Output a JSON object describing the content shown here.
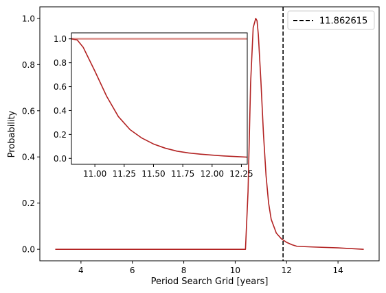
{
  "chart_data": [
    {
      "type": "line",
      "title": "",
      "xlabel": "Period Search Grid [years]",
      "ylabel": "Probability",
      "xlim": [
        2.4,
        15.6
      ],
      "ylim": [
        -0.05,
        1.05
      ],
      "xticks": [
        4,
        6,
        8,
        10,
        12,
        14
      ],
      "yticks": [
        0.0,
        0.2,
        0.4,
        0.6,
        0.8,
        1.0
      ],
      "xtick_labels": [
        "4",
        "6",
        "8",
        "10",
        "12",
        "14"
      ],
      "ytick_labels": [
        "0.0",
        "0.2",
        "0.4",
        "0.6",
        "0.8",
        "1.0"
      ],
      "grid": false,
      "legend_position": "top-right",
      "series": [
        {
          "color": "#b22222",
          "x": [
            3.0,
            10.4,
            10.5,
            10.6,
            10.7,
            10.8,
            10.85,
            10.9,
            11.0,
            11.1,
            11.2,
            11.3,
            11.4,
            11.6,
            11.8,
            12.0,
            12.2,
            12.4,
            13.0,
            14.0,
            15.0
          ],
          "y": [
            0.0,
            0.0,
            0.25,
            0.72,
            0.96,
            1.0,
            0.99,
            0.93,
            0.73,
            0.5,
            0.32,
            0.2,
            0.13,
            0.07,
            0.045,
            0.03,
            0.02,
            0.013,
            0.01,
            0.006,
            0.0
          ]
        }
      ],
      "reference_lines": [
        {
          "orientation": "vertical",
          "x": 11.862615,
          "label": "11.862615",
          "color": "#000000",
          "style": "dashed"
        }
      ]
    },
    {
      "type": "line",
      "title": "",
      "xlabel": "",
      "ylabel": "",
      "xlim": [
        10.8,
        12.3
      ],
      "ylim": [
        -0.05,
        1.05
      ],
      "xticks": [
        11.0,
        11.25,
        11.5,
        11.75,
        12.0,
        12.25
      ],
      "yticks": [
        0.0,
        0.2,
        0.4,
        0.6,
        0.8,
        1.0
      ],
      "xtick_labels": [
        "11.00",
        "11.25",
        "11.50",
        "11.75",
        "12.00",
        "12.25"
      ],
      "ytick_labels": [
        "0.0",
        "0.2",
        "0.4",
        "0.6",
        "0.8",
        "1.0"
      ],
      "grid": false,
      "series": [
        {
          "color": "#d98a85",
          "x": [
            10.8,
            12.3
          ],
          "y": [
            1.0,
            1.0
          ]
        },
        {
          "color": "#b22222",
          "x": [
            10.8,
            10.85,
            10.9,
            11.0,
            11.1,
            11.2,
            11.3,
            11.4,
            11.5,
            11.6,
            11.7,
            11.8,
            11.9,
            12.0,
            12.1,
            12.2,
            12.3
          ],
          "y": [
            1.0,
            0.99,
            0.93,
            0.73,
            0.52,
            0.35,
            0.24,
            0.17,
            0.12,
            0.085,
            0.06,
            0.045,
            0.035,
            0.027,
            0.02,
            0.015,
            0.01
          ]
        }
      ]
    }
  ]
}
